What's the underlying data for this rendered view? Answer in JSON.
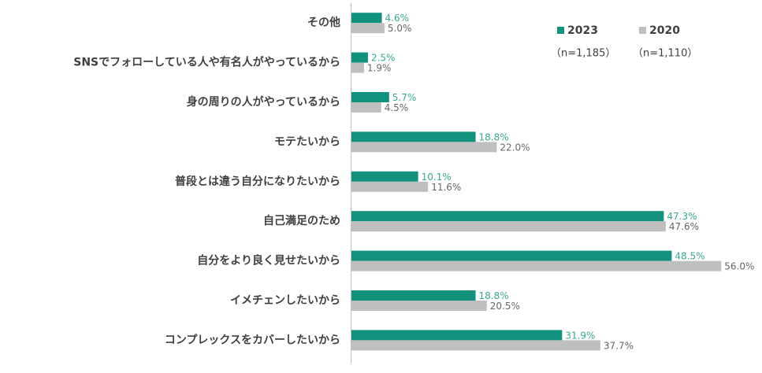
{
  "chart_data": {
    "type": "bar",
    "orientation": "horizontal",
    "categories": [
      "その他",
      "SNSでフォローしている人や有名人がやっているから",
      "身の周りの人がやっているから",
      "モテたいから",
      "普段とは違う自分になりたいから",
      "自己満足のため",
      "自分をより良く見せたいから",
      "イメチェンしたいから",
      "コンプレックスをカバーしたいから"
    ],
    "series": [
      {
        "name": "2023",
        "sample_label": "（n=1,185）",
        "color": "#12917d",
        "label_color": "#3aa893",
        "values": [
          4.6,
          2.5,
          5.7,
          18.8,
          10.1,
          47.3,
          48.5,
          18.8,
          31.9
        ],
        "value_labels": [
          "4.6%",
          "2.5%",
          "5.7%",
          "18.8%",
          "10.1%",
          "47.3%",
          "48.5%",
          "18.8%",
          "31.9%"
        ]
      },
      {
        "name": "2020",
        "sample_label": "（n=1,110）",
        "color": "#bfbfbf",
        "label_color": "#666666",
        "values": [
          5.0,
          1.9,
          4.5,
          22.0,
          11.6,
          47.6,
          56.0,
          20.5,
          37.7
        ],
        "value_labels": [
          "5.0%",
          "1.9%",
          "4.5%",
          "22.0%",
          "11.6%",
          "47.6%",
          "56.0%",
          "20.5%",
          "37.7%"
        ]
      }
    ]
  }
}
